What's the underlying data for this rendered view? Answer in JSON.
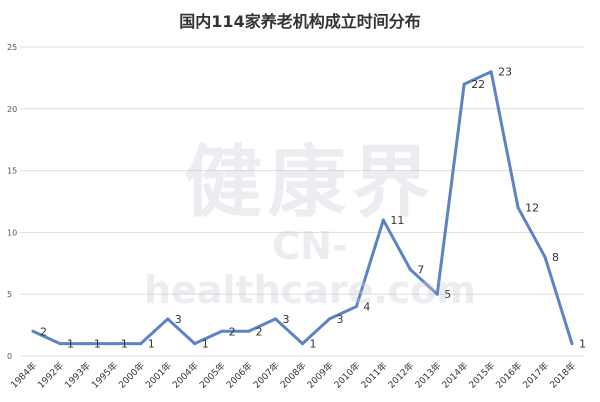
{
  "title": "国内114家养老机构成立时间分布",
  "watermark": {
    "cn": "健康界",
    "en": "CN-healthcare.com"
  },
  "colors": {
    "line": "#5b84c4",
    "grid": "#dddddd",
    "watermark": "#c9cbd8"
  },
  "chart_data": {
    "type": "line",
    "title": "国内114家养老机构成立时间分布",
    "categories": [
      "1984年",
      "1992年",
      "1993年",
      "1995年",
      "2000年",
      "2001年",
      "2004年",
      "2005年",
      "2006年",
      "2007年",
      "2008年",
      "2009年",
      "2010年",
      "2011年",
      "2012年",
      "2013年",
      "2014年",
      "2015年",
      "2016年",
      "2017年",
      "2018年"
    ],
    "values": [
      2,
      1,
      1,
      1,
      1,
      3,
      1,
      2,
      2,
      3,
      1,
      3,
      4,
      11,
      7,
      5,
      22,
      23,
      12,
      8,
      1
    ],
    "yticks": [
      0,
      5,
      10,
      15,
      20,
      25
    ],
    "ylim": [
      0,
      25
    ],
    "grid": true,
    "legend": false
  }
}
